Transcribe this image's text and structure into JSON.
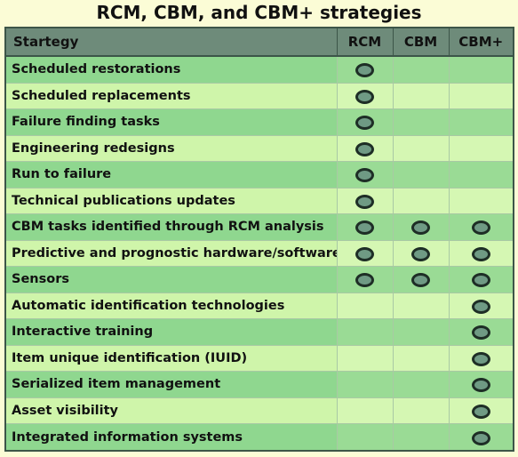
{
  "title": "RCM, CBM, and CBM+ strategies",
  "colors": {
    "header": "#6e8b7a",
    "row_dark": "#8fd78f",
    "row_light": "#cff5aa",
    "dot_fill": "#6f9a84",
    "dot_border": "#1e2e26"
  },
  "columns": [
    "Startegy",
    "RCM",
    "CBM",
    "CBM+"
  ],
  "rows": [
    {
      "label": "Scheduled restorations",
      "rcm": true,
      "cbm": false,
      "cbm_plus": false
    },
    {
      "label": "Scheduled replacements",
      "rcm": true,
      "cbm": false,
      "cbm_plus": false
    },
    {
      "label": "Failure finding tasks",
      "rcm": true,
      "cbm": false,
      "cbm_plus": false
    },
    {
      "label": "Engineering redesigns",
      "rcm": true,
      "cbm": false,
      "cbm_plus": false
    },
    {
      "label": "Run to failure",
      "rcm": true,
      "cbm": false,
      "cbm_plus": false
    },
    {
      "label": "Technical publications updates",
      "rcm": true,
      "cbm": false,
      "cbm_plus": false
    },
    {
      "label": "CBM tasks identified through RCM analysis",
      "rcm": true,
      "cbm": true,
      "cbm_plus": true
    },
    {
      "label": "Predictive and prognostic hardware/software",
      "rcm": true,
      "cbm": true,
      "cbm_plus": true
    },
    {
      "label": "Sensors",
      "rcm": true,
      "cbm": true,
      "cbm_plus": true
    },
    {
      "label": "Automatic identification technologies",
      "rcm": false,
      "cbm": false,
      "cbm_plus": true
    },
    {
      "label": "Interactive training",
      "rcm": false,
      "cbm": false,
      "cbm_plus": true
    },
    {
      "label": "Item unique identification (IUID)",
      "rcm": false,
      "cbm": false,
      "cbm_plus": true
    },
    {
      "label": "Serialized item management",
      "rcm": false,
      "cbm": false,
      "cbm_plus": true
    },
    {
      "label": "Asset visibility",
      "rcm": false,
      "cbm": false,
      "cbm_plus": true
    },
    {
      "label": "Integrated information systems",
      "rcm": false,
      "cbm": false,
      "cbm_plus": true
    }
  ]
}
